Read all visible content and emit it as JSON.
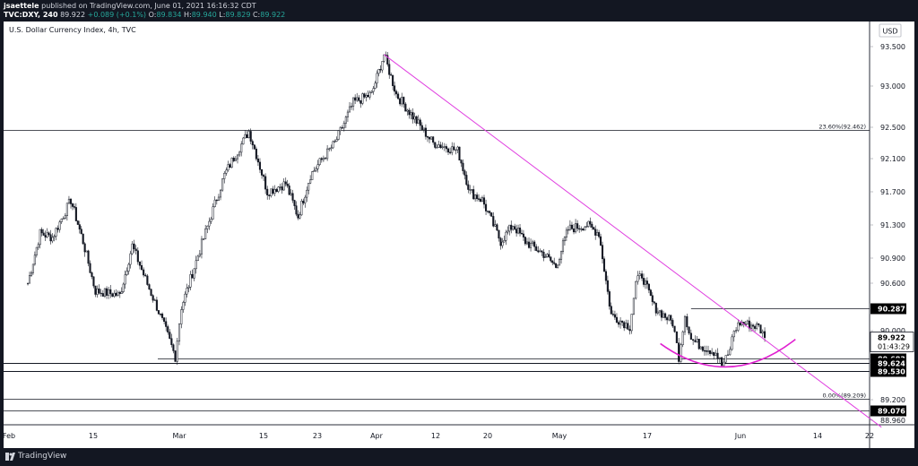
{
  "header": {
    "user": "jsaettele",
    "published_text": "published on TradingView.com, June 01, 2021 16:16:32 CDT",
    "symbol_line": "TVC:DXY, 240",
    "last": "89.922",
    "change": "+0.089 (+0.1%)",
    "open_label": "O:",
    "open": "89.834",
    "high_label": "H:",
    "high": "89.940",
    "low_label": "L:",
    "low": "89.829",
    "close_label": "C:",
    "close": "89.922"
  },
  "footer": {
    "brand": "TradingView"
  },
  "colors": {
    "background": "#131722",
    "axis_text": "#d1d4dc",
    "trendline": "#e040e0",
    "arc": "#e020d0",
    "level_line": "#d1d4dc",
    "badge_bg": "#ffffff",
    "badge_text": "#000000"
  },
  "chart_data": {
    "type": "candlestick",
    "title": "U.S. Dollar Currency Index, 4h, TVC",
    "currency": "USD",
    "y_ticks": [
      93.5,
      93.0,
      92.5,
      92.1,
      91.7,
      91.3,
      90.9,
      90.6,
      90.0,
      89.2,
      88.96
    ],
    "y_tick_labels": [
      "93.500",
      "93.000",
      "92.500",
      "92.100",
      "91.700",
      "91.300",
      "90.900",
      "90.600",
      "90.000",
      "89.200",
      "88.960"
    ],
    "x_labels": [
      "Feb",
      "15",
      "Mar",
      "15",
      "23",
      "Apr",
      "12",
      "20",
      "May",
      "17",
      "Jun",
      "14",
      "22"
    ],
    "horizontal_levels": [
      {
        "value": 92.462,
        "label": "23.60%(92.462)"
      },
      {
        "value": 90.287,
        "label": "90.287",
        "start": "May 20"
      },
      {
        "value": 89.683,
        "label": "89.683"
      },
      {
        "value": 89.624,
        "label": "89.624"
      },
      {
        "value": 89.53,
        "label": "89.530"
      },
      {
        "value": 89.209,
        "label": "0.00%(89.209)"
      },
      {
        "value": 89.076,
        "label": "89.076"
      }
    ],
    "price_badge": {
      "value": 89.922,
      "label": "89.922",
      "countdown": "01:43:29"
    },
    "trendline": {
      "from": {
        "date": "Mar 31",
        "value": 93.4
      },
      "to": {
        "date": "Jun 20",
        "value": 88.88
      }
    },
    "arc": {
      "from": {
        "date": "May 15",
        "value": 89.85
      },
      "bottom": {
        "date": "May 26",
        "value": 89.58
      },
      "to": {
        "date": "Jun 6",
        "value": 89.9
      }
    },
    "path_anchors": [
      {
        "date": "Feb 1",
        "value": 90.6
      },
      {
        "date": "Feb 3",
        "value": 91.2
      },
      {
        "date": "Feb 5",
        "value": 91.15
      },
      {
        "date": "Feb 8",
        "value": 91.6
      },
      {
        "date": "Feb 10",
        "value": 91.1
      },
      {
        "date": "Feb 12",
        "value": 90.5
      },
      {
        "date": "Feb 16",
        "value": 90.45
      },
      {
        "date": "Feb 18",
        "value": 91.05
      },
      {
        "date": "Feb 22",
        "value": 90.3
      },
      {
        "date": "Feb 25",
        "value": 89.7
      },
      {
        "date": "Feb 26",
        "value": 90.3
      },
      {
        "date": "Mar 1",
        "value": 91.0
      },
      {
        "date": "Mar 5",
        "value": 91.9
      },
      {
        "date": "Mar 9",
        "value": 92.45
      },
      {
        "date": "Mar 12",
        "value": 91.7
      },
      {
        "date": "Mar 15",
        "value": 91.8
      },
      {
        "date": "Mar 17",
        "value": 91.4
      },
      {
        "date": "Mar 19",
        "value": 91.9
      },
      {
        "date": "Mar 23",
        "value": 92.3
      },
      {
        "date": "Mar 26",
        "value": 92.8
      },
      {
        "date": "Mar 29",
        "value": 92.9
      },
      {
        "date": "Mar 31",
        "value": 93.4
      },
      {
        "date": "Apr 2",
        "value": 92.9
      },
      {
        "date": "Apr 5",
        "value": 92.6
      },
      {
        "date": "Apr 8",
        "value": 92.3
      },
      {
        "date": "Apr 12",
        "value": 92.2
      },
      {
        "date": "Apr 14",
        "value": 91.7
      },
      {
        "date": "Apr 16",
        "value": 91.6
      },
      {
        "date": "Apr 19",
        "value": 91.1
      },
      {
        "date": "Apr 21",
        "value": 91.3
      },
      {
        "date": "Apr 23",
        "value": 91.1
      },
      {
        "date": "Apr 26",
        "value": 90.95
      },
      {
        "date": "Apr 28",
        "value": 90.8
      },
      {
        "date": "Apr 30",
        "value": 91.25
      },
      {
        "date": "May 3",
        "value": 91.3
      },
      {
        "date": "May 5",
        "value": 91.2
      },
      {
        "date": "May 7",
        "value": 90.2
      },
      {
        "date": "May 10",
        "value": 90.05
      },
      {
        "date": "May 11",
        "value": 90.6
      },
      {
        "date": "May 12",
        "value": 90.7
      },
      {
        "date": "May 14",
        "value": 90.3
      },
      {
        "date": "May 17",
        "value": 90.1
      },
      {
        "date": "May 18",
        "value": 89.7
      },
      {
        "date": "May 19",
        "value": 90.2
      },
      {
        "date": "May 20",
        "value": 89.9
      },
      {
        "date": "May 21",
        "value": 89.85
      },
      {
        "date": "May 24",
        "value": 89.75
      },
      {
        "date": "May 25",
        "value": 89.6
      },
      {
        "date": "May 26",
        "value": 89.7
      },
      {
        "date": "May 27",
        "value": 90.0
      },
      {
        "date": "May 28",
        "value": 90.1
      },
      {
        "date": "May 31",
        "value": 90.05
      },
      {
        "date": "Jun 1",
        "value": 89.92
      }
    ]
  }
}
